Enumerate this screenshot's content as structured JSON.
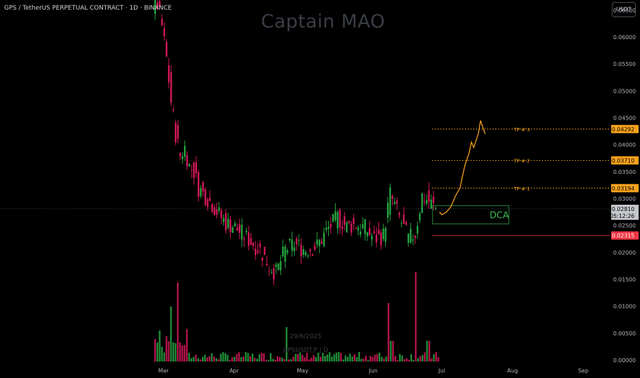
{
  "header": {
    "title": "GPS / TetherUS PERPETUAL CONTRACT · 1D · BINANCE",
    "currency": "USDT"
  },
  "watermark": "Captain MAO",
  "colors": {
    "background": "#000000",
    "up": "#26a641",
    "down": "#d6185a",
    "tp": "#f7a21b",
    "stop": "#f23645",
    "dca": "#2e8b3e",
    "current_price": "#c4c7cc"
  },
  "chart_data": {
    "type": "candlestick",
    "x_axis": {
      "ticks": [
        "Mar",
        "Apr",
        "May",
        "Jun",
        "Jul",
        "Aug",
        "Sep"
      ]
    },
    "y_axis": {
      "ticks": [
        "0.06500",
        "0.06000",
        "0.05500",
        "0.05000",
        "0.04500",
        "0.04000",
        "0.03500",
        "0.03000",
        "0.02500",
        "0.02000",
        "0.01500",
        "0.01000",
        "0.00500",
        "0.00000"
      ],
      "range": [
        0.0,
        0.066
      ]
    },
    "price_path": {
      "dates": [
        "2025-02-25",
        "2025-02-27",
        "2025-03-01",
        "2025-03-03",
        "2025-03-05",
        "2025-03-07",
        "2025-03-09",
        "2025-03-11",
        "2025-03-13",
        "2025-03-15",
        "2025-03-17",
        "2025-03-20",
        "2025-03-23",
        "2025-03-26",
        "2025-03-29",
        "2025-04-01",
        "2025-04-05",
        "2025-04-09",
        "2025-04-13",
        "2025-04-17",
        "2025-04-20",
        "2025-04-24",
        "2025-04-28",
        "2025-05-03",
        "2025-05-08",
        "2025-05-13",
        "2025-05-17",
        "2025-05-21",
        "2025-05-25",
        "2025-05-29",
        "2025-06-02",
        "2025-06-06",
        "2025-06-09",
        "2025-06-13",
        "2025-06-17",
        "2025-06-20",
        "2025-06-23",
        "2025-06-26",
        "2025-06-29"
      ],
      "values": [
        0.0655,
        0.066,
        0.062,
        0.056,
        0.048,
        0.042,
        0.038,
        0.0395,
        0.036,
        0.035,
        0.032,
        0.0305,
        0.029,
        0.027,
        0.0255,
        0.025,
        0.0235,
        0.022,
        0.0205,
        0.0175,
        0.0162,
        0.0205,
        0.0215,
        0.0205,
        0.0212,
        0.0245,
        0.0265,
        0.0248,
        0.0252,
        0.0245,
        0.0225,
        0.0232,
        0.0308,
        0.0265,
        0.0225,
        0.0235,
        0.0305,
        0.0295,
        0.0281
      ]
    },
    "volume": {
      "note": "volume histogram shown at bottom, no axis values printed"
    },
    "levels": [
      {
        "name": "TP # 3",
        "price": "0.04292"
      },
      {
        "name": "TP # 2",
        "price": "0.03710"
      },
      {
        "name": "TP # 1",
        "price": "0.03194"
      },
      {
        "name": "stop",
        "price": "0.02315"
      }
    ],
    "current": {
      "price": "0.02810",
      "countdown": "05:12:26"
    },
    "dca_label": "DCA",
    "projection": {
      "dates": [
        "2025-06-30",
        "2025-07-01",
        "2025-07-03",
        "2025-07-05",
        "2025-07-07",
        "2025-07-09",
        "2025-07-11",
        "2025-07-13",
        "2025-07-14",
        "2025-07-15",
        "2025-07-17",
        "2025-07-18",
        "2025-07-20"
      ],
      "values": [
        0.0275,
        0.027,
        0.0275,
        0.0285,
        0.0305,
        0.032,
        0.036,
        0.0385,
        0.0405,
        0.0395,
        0.042,
        0.0445,
        0.042
      ]
    },
    "annotations": {
      "date_watermark": "29/6/2025",
      "symbol_watermark": "GPSUSDT.P | D"
    }
  }
}
